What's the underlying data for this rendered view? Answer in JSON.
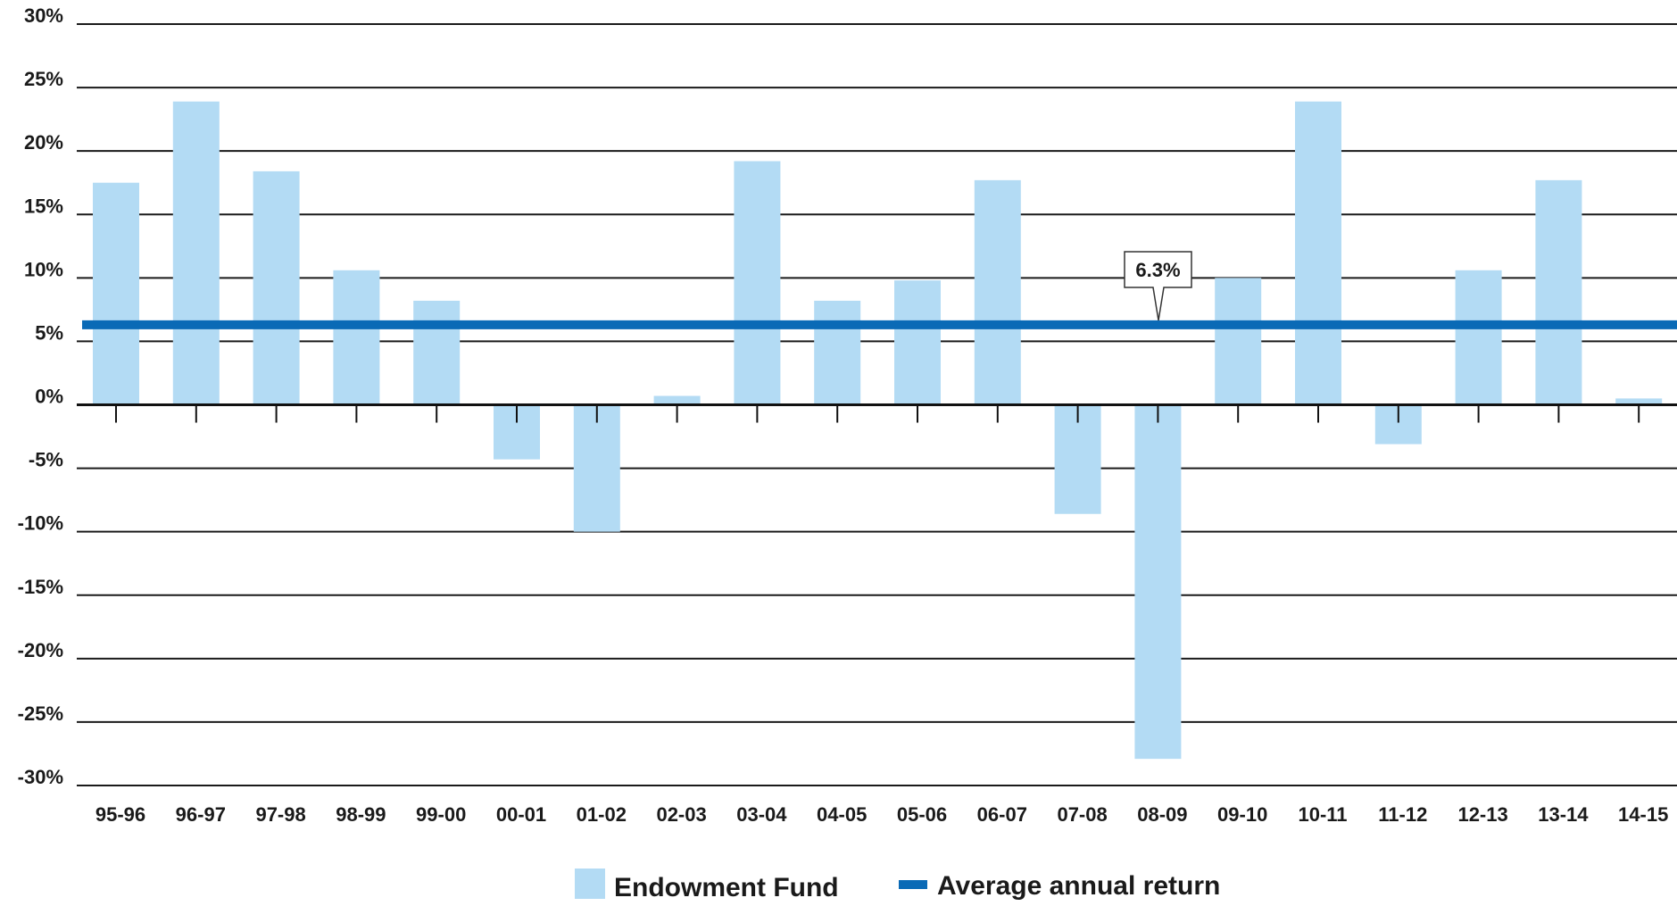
{
  "chart_data": {
    "type": "bar",
    "categories": [
      "95-96",
      "96-97",
      "97-98",
      "98-99",
      "99-00",
      "00-01",
      "01-02",
      "02-03",
      "03-04",
      "04-05",
      "05-06",
      "06-07",
      "07-08",
      "08-09",
      "09-10",
      "10-11",
      "11-12",
      "12-13",
      "13-14",
      "14-15"
    ],
    "series": [
      {
        "name": "Endowment Fund",
        "color": "#b3dbf4",
        "values": [
          17.5,
          23.9,
          18.4,
          10.6,
          8.2,
          -4.3,
          -10.0,
          0.7,
          19.2,
          8.2,
          9.8,
          17.7,
          -8.6,
          -27.9,
          10.0,
          23.9,
          -3.1,
          10.6,
          17.7,
          0.5
        ]
      }
    ],
    "average_line": {
      "name": "Average annual return",
      "value": 6.3,
      "label": "6.3%",
      "color": "#0a6ab6"
    },
    "y_ticks": [
      "30%",
      "25%",
      "20%",
      "15%",
      "10%",
      "5%",
      "0%",
      "-5%",
      "-10%",
      "-15%",
      "-20%",
      "-25%",
      "-30%"
    ],
    "ylim": [
      -30,
      30
    ],
    "y_step": 5,
    "grid": true,
    "legend": "bottom-center",
    "title": "",
    "xlabel": "",
    "ylabel": ""
  }
}
